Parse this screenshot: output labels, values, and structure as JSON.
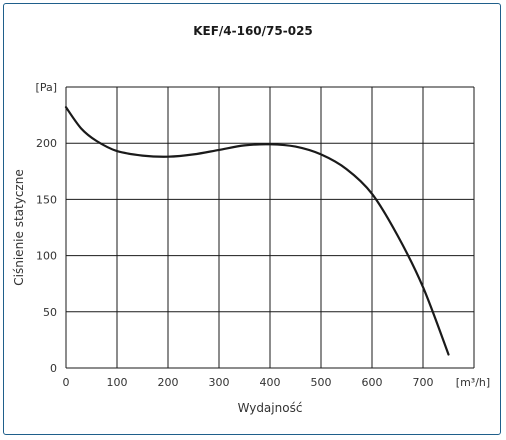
{
  "chart_data": {
    "type": "line",
    "title": "KEF/4-160/75-025",
    "xlabel": "Wydajność",
    "ylabel": "Ciśnienie statyczne",
    "x_unit": "[m³/h]",
    "y_unit": "[Pa]",
    "xlim": [
      0,
      800
    ],
    "ylim": [
      0,
      250
    ],
    "x_ticks": [
      "0",
      "100",
      "200",
      "300",
      "400",
      "500",
      "600",
      "700"
    ],
    "y_ticks": [
      "0",
      "50",
      "100",
      "150",
      "200"
    ],
    "grid": true,
    "series": [
      {
        "x": [
          0,
          30,
          60,
          100,
          150,
          200,
          250,
          300,
          350,
          400,
          450,
          500,
          550,
          600,
          650,
          700,
          750
        ],
        "y": [
          232,
          213,
          202,
          193,
          189,
          188,
          190,
          194,
          198,
          199,
          197,
          190,
          177,
          155,
          118,
          72,
          12
        ],
        "color": "#1a1a1a"
      }
    ]
  }
}
